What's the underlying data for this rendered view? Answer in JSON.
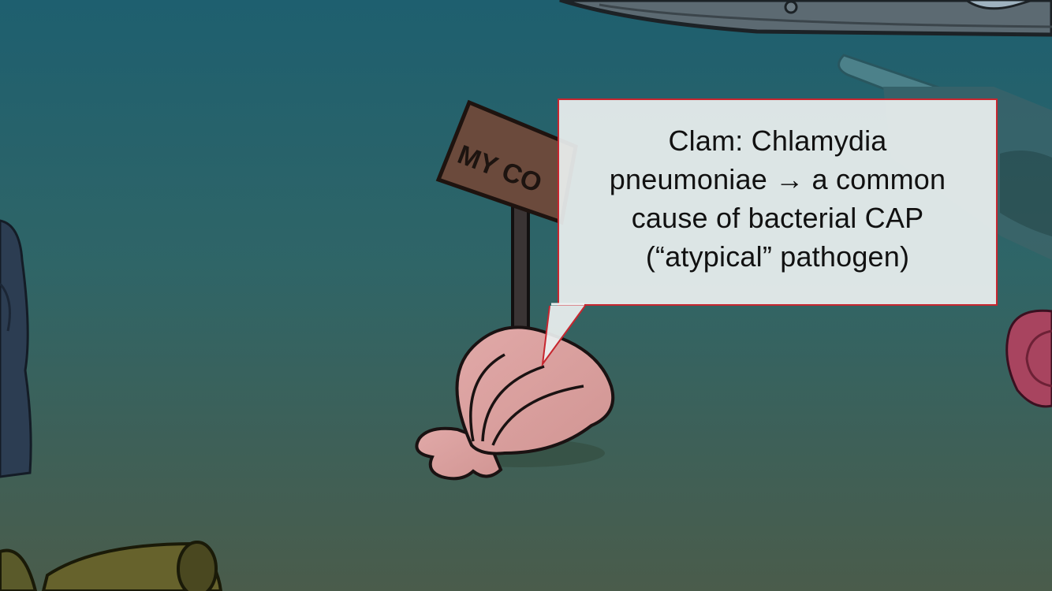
{
  "sign": {
    "text": "MY CO"
  },
  "callout": {
    "text": "Clam: Chlamydia\npneumoniae → a common\ncause of bacterial CAP\n(“atypical” pathogen)"
  },
  "colors": {
    "water_top": "#1f5f6e",
    "water_bottom": "#4a5e4c",
    "clam": "#d9a0a0",
    "callout_border": "#c7262f",
    "callout_bg": "#eef1f1"
  },
  "icons": [
    "clam-shell-icon",
    "signpost-icon"
  ]
}
